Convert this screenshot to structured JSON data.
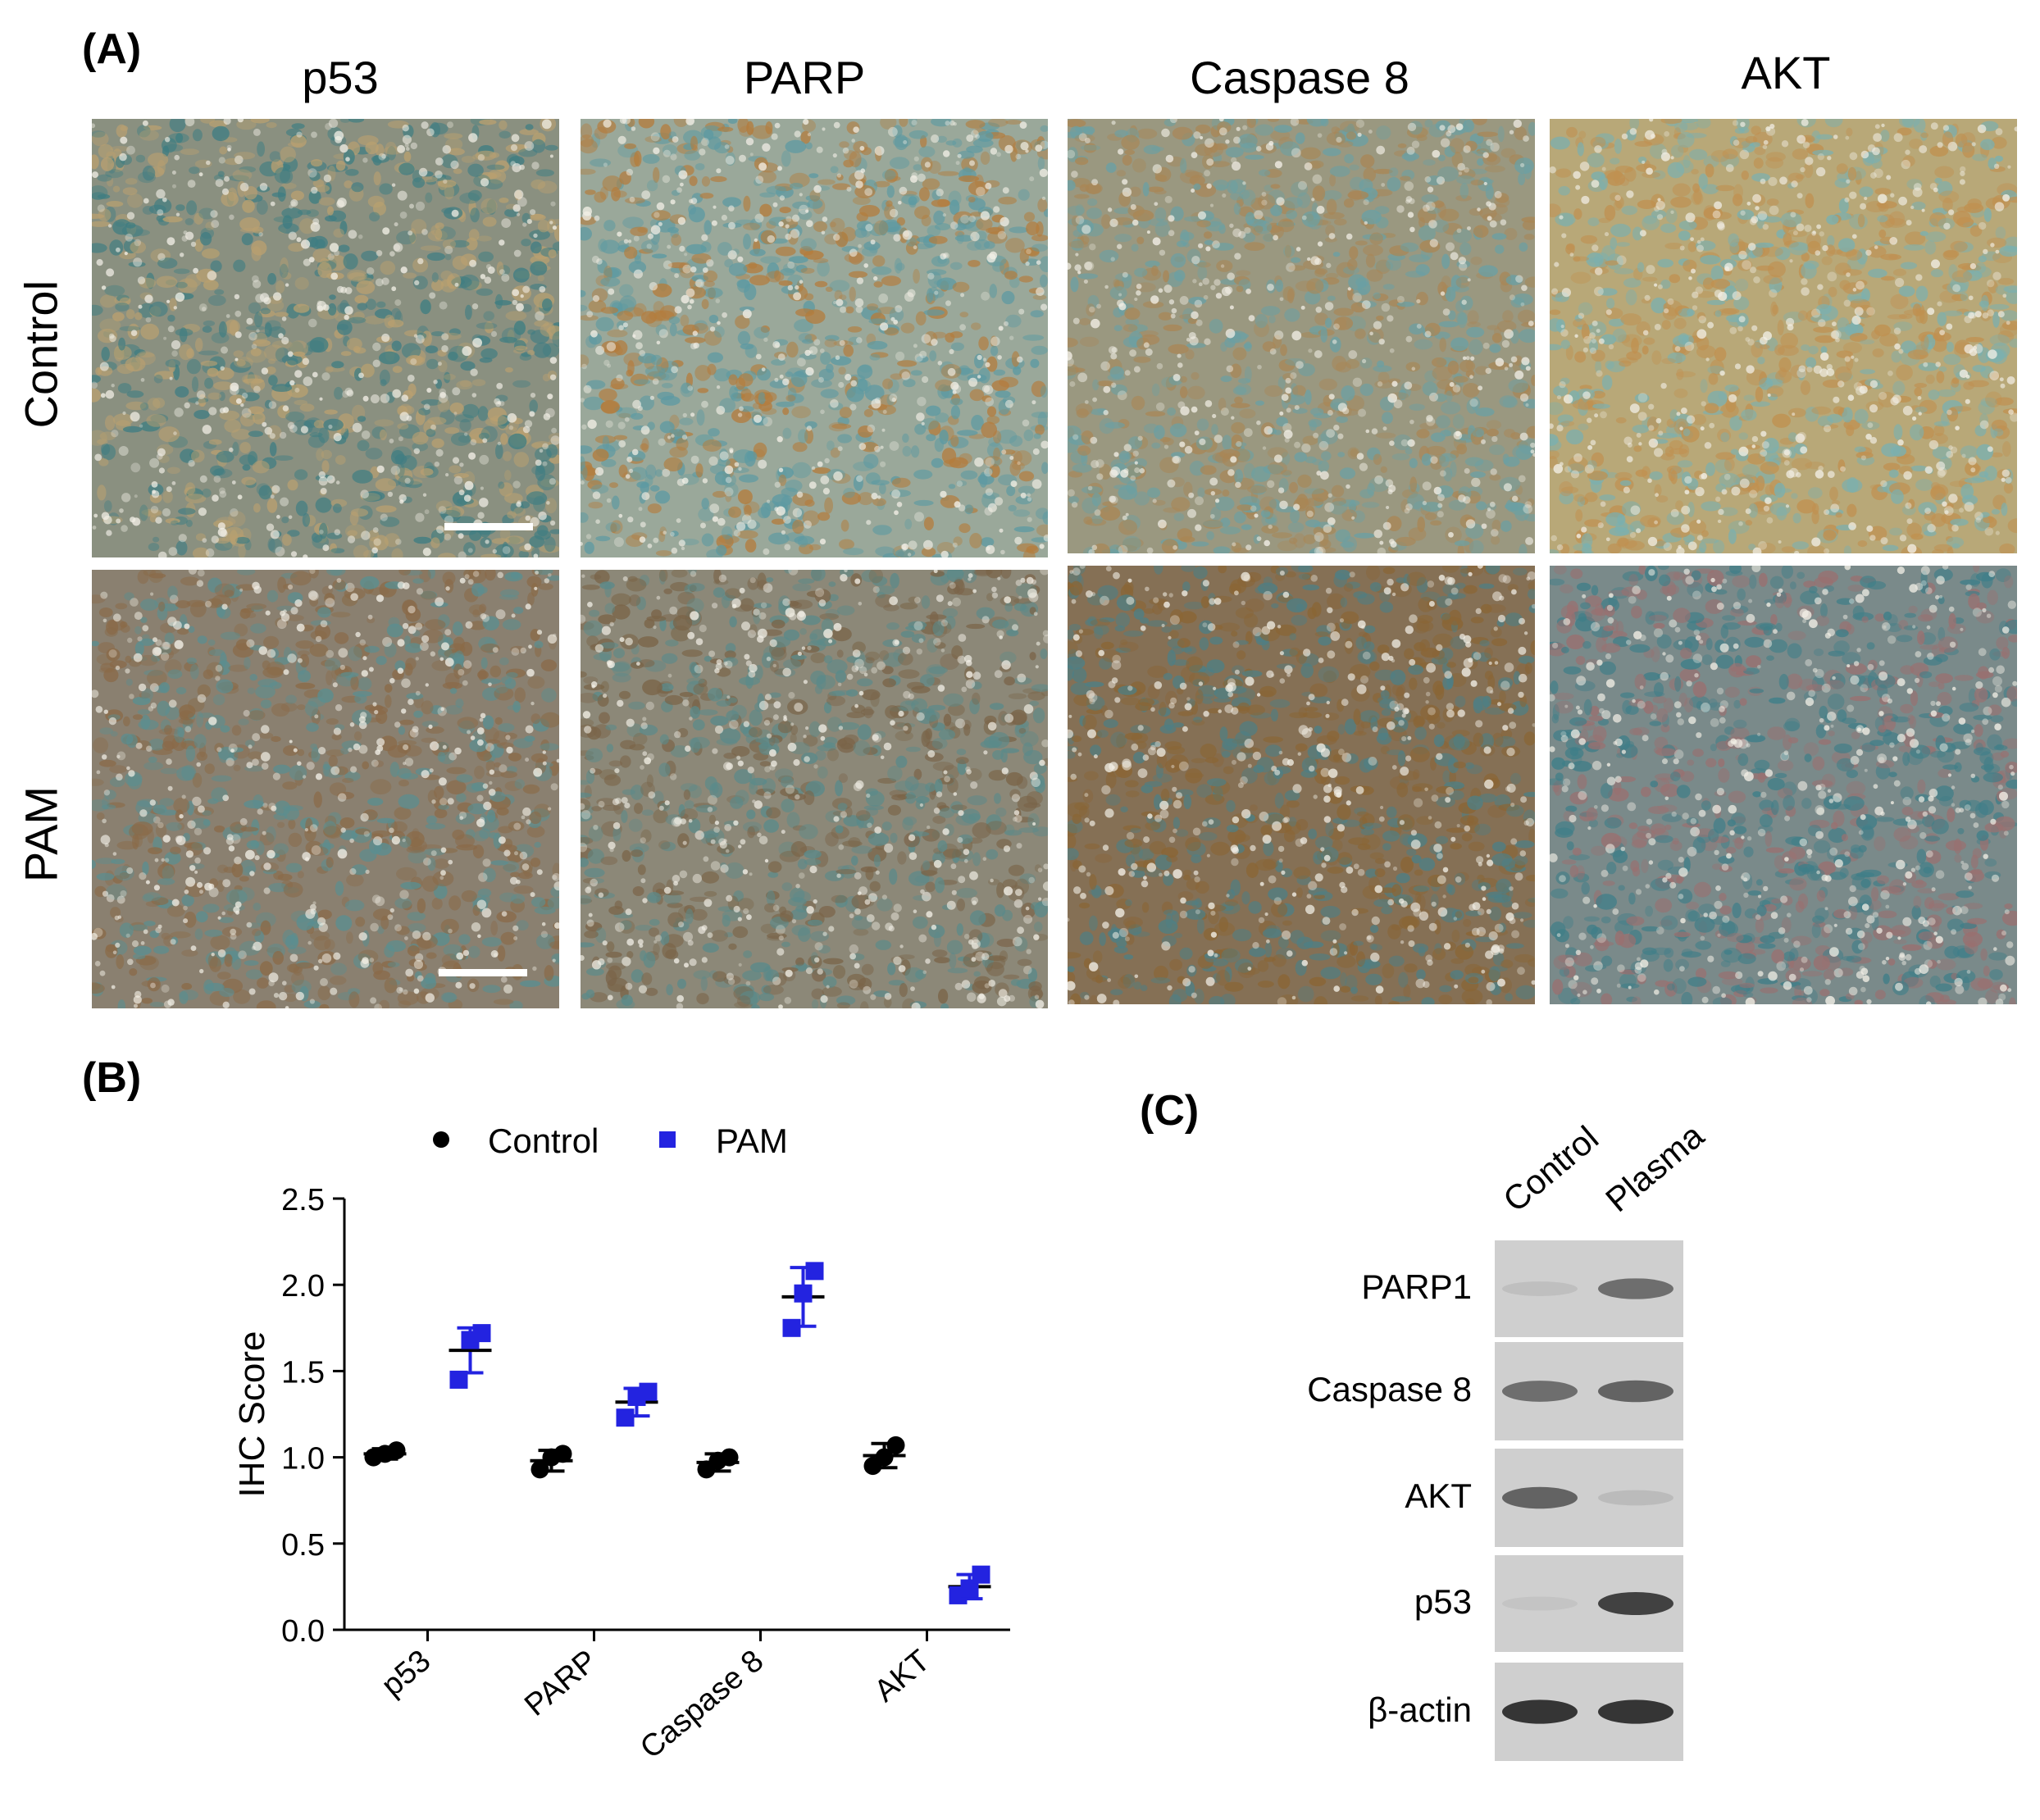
{
  "panel_a": {
    "label": "(A)",
    "columns": [
      "p53",
      "PARP",
      "Caspase 8",
      "AKT"
    ],
    "rows": [
      "Control",
      "PAM"
    ],
    "tiles": [
      {
        "row": 0,
        "col": 0,
        "base": "#8a9080",
        "warm": "#b9a070",
        "cool": "#3f7d82"
      },
      {
        "row": 0,
        "col": 1,
        "base": "#9aa89a",
        "warm": "#b47c3c",
        "cool": "#5d9aa2"
      },
      {
        "row": 0,
        "col": 2,
        "base": "#9a9880",
        "warm": "#a98655",
        "cool": "#6aa0a4"
      },
      {
        "row": 0,
        "col": 3,
        "base": "#b8a878",
        "warm": "#c09050",
        "cool": "#7ab0b0"
      },
      {
        "row": 1,
        "col": 0,
        "base": "#8a8070",
        "warm": "#8a6a48",
        "cool": "#5a8e90"
      },
      {
        "row": 1,
        "col": 1,
        "base": "#8c8878",
        "warm": "#7a6448",
        "cool": "#5a8a8a"
      },
      {
        "row": 1,
        "col": 2,
        "base": "#857055",
        "warm": "#8a6535",
        "cool": "#4d7f85"
      },
      {
        "row": 1,
        "col": 3,
        "base": "#7a8a8a",
        "warm": "#9a7070",
        "cool": "#3f7e88"
      }
    ]
  },
  "panel_b": {
    "label": "(B)",
    "legend": [
      {
        "name": "Control",
        "marker": "circle",
        "color": "#000000"
      },
      {
        "name": "PAM",
        "marker": "square",
        "color": "#2323e0"
      }
    ]
  },
  "chart_data": {
    "type": "scatter",
    "categories": [
      "p53",
      "PARP",
      "Caspase 8",
      "AKT"
    ],
    "ylabel": "IHC Score",
    "ylim": [
      0.0,
      2.5
    ],
    "yticks": [
      "0.0",
      "0.5",
      "1.0",
      "1.5",
      "2.0",
      "2.5"
    ],
    "legend_position": "top",
    "series": [
      {
        "name": "Control",
        "color": "#000000",
        "marker": "circle",
        "points": [
          [
            1.0,
            1.02,
            1.04
          ],
          [
            0.93,
            1.0,
            1.02
          ],
          [
            0.93,
            0.98,
            1.0
          ],
          [
            0.95,
            1.0,
            1.07
          ]
        ],
        "mean": [
          1.02,
          0.98,
          0.97,
          1.01
        ],
        "sd": [
          0.03,
          0.06,
          0.05,
          0.07
        ]
      },
      {
        "name": "PAM",
        "color": "#2323e0",
        "marker": "square",
        "points": [
          [
            1.45,
            1.68,
            1.72
          ],
          [
            1.23,
            1.35,
            1.38
          ],
          [
            1.75,
            1.95,
            2.08
          ],
          [
            0.2,
            0.24,
            0.32
          ]
        ],
        "mean": [
          1.62,
          1.32,
          1.93,
          0.25
        ],
        "sd": [
          0.13,
          0.08,
          0.17,
          0.07
        ]
      }
    ]
  },
  "panel_c": {
    "label": "(C)",
    "lanes": [
      "Control",
      "Plasma"
    ],
    "rows": [
      {
        "label": "PARP1",
        "control": 0.15,
        "plasma": 0.7
      },
      {
        "label": "Caspase 8",
        "control": 0.7,
        "plasma": 0.75
      },
      {
        "label": "AKT",
        "control": 0.75,
        "plasma": 0.2
      },
      {
        "label": "p53",
        "control": 0.1,
        "plasma": 0.9
      },
      {
        "label": "β-actin",
        "control": 0.95,
        "plasma": 0.95
      }
    ]
  }
}
